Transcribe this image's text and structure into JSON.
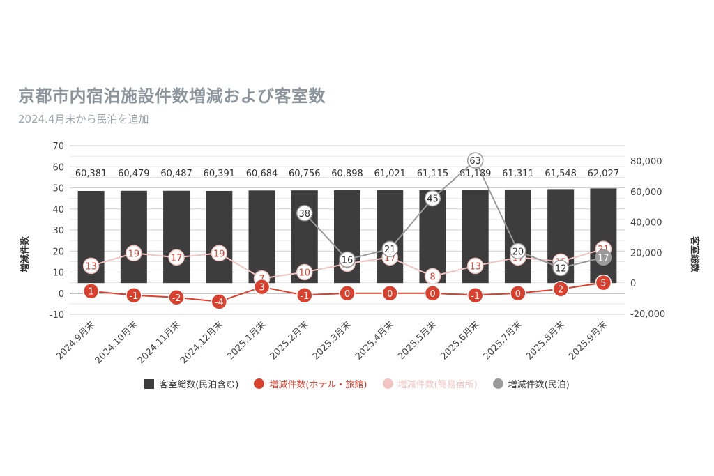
{
  "chart_data": {
    "type": "bar",
    "title": "京都市内宿泊施設件数増減および客室数",
    "subtitle": "2024.4月末から民泊を追加",
    "ylabel_left": "増減件数",
    "ylabel_right": "客室総数",
    "ylim_left": [
      -10,
      70
    ],
    "yticks_left": [
      -10,
      0,
      10,
      20,
      30,
      40,
      50,
      60,
      70
    ],
    "ylim_right": [
      -20000,
      80000
    ],
    "yticks_right": [
      -20000,
      0,
      20000,
      40000,
      60000,
      80000
    ],
    "yticks_right_labels": [
      "-20,000",
      "0",
      "20,000",
      "40,000",
      "60,000",
      "80,000"
    ],
    "categories": [
      "2024.9月末",
      "2024.10月末",
      "2024.11月末",
      "2024.12月末",
      "2025.1月末",
      "2025.2月末",
      "2025.3月末",
      "2025.4月末",
      "2025.5月末",
      "2025.6月末",
      "2025.7月末",
      "2025.8月末",
      "2025.9月末"
    ],
    "series": [
      {
        "name": "客室総数(民泊含む)",
        "type": "bar",
        "axis": "right",
        "color": "#3d3d3d",
        "values": [
          60381,
          60479,
          60487,
          60391,
          60684,
          60756,
          60898,
          61021,
          61115,
          61189,
          61311,
          61548,
          62027
        ],
        "labels": [
          "60,381",
          "60,479",
          "60,487",
          "60,391",
          "60,684",
          "60,756",
          "60,898",
          "61,021",
          "61,115",
          "61,189",
          "61,311",
          "61,548",
          "62,027"
        ]
      },
      {
        "name": "増減件数(ホテル・旅館)",
        "type": "line",
        "axis": "left",
        "color": "#d9402e",
        "values": [
          1,
          -1,
          -2,
          -4,
          3,
          -1,
          0,
          0,
          0,
          -1,
          0,
          2,
          5
        ]
      },
      {
        "name": "増減件数(簡易宿所)",
        "type": "line",
        "axis": "left",
        "color": "#f2c4c2",
        "values": [
          13,
          19,
          17,
          19,
          7,
          10,
          14,
          17,
          8,
          13,
          17,
          15,
          21
        ]
      },
      {
        "name": "増減件数(民泊)",
        "type": "line",
        "axis": "left",
        "color": "#9a9a9a",
        "values": [
          null,
          null,
          null,
          null,
          null,
          38,
          16,
          21,
          45,
          63,
          20,
          12,
          17
        ]
      }
    ],
    "grid": true,
    "legend_position": "bottom"
  }
}
